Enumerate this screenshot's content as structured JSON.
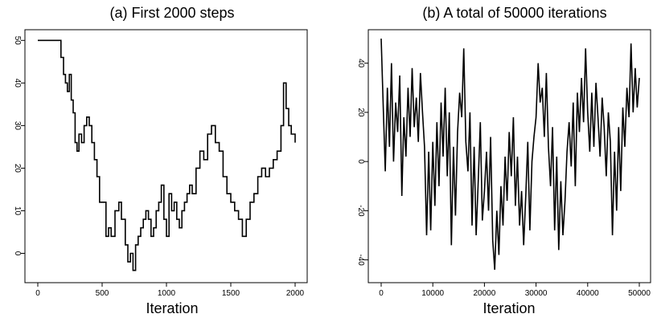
{
  "chart_data": [
    {
      "type": "line",
      "title": "(a) First 2000 steps",
      "xlabel": "Iteration",
      "ylabel": "",
      "xlim": [
        0,
        2000
      ],
      "ylim": [
        -5,
        51
      ],
      "xticks": [
        0,
        500,
        1000,
        1500,
        2000
      ],
      "yticks": [
        0,
        10,
        20,
        30,
        40,
        50
      ],
      "step": true,
      "series": [
        {
          "x": [
            0,
            180,
            200,
            215,
            230,
            245,
            260,
            275,
            290,
            305,
            320,
            340,
            360,
            380,
            400,
            420,
            440,
            460,
            480,
            500,
            530,
            550,
            570,
            600,
            630,
            650,
            680,
            700,
            720,
            740,
            760,
            780,
            800,
            820,
            840,
            860,
            880,
            900,
            920,
            940,
            960,
            980,
            1000,
            1020,
            1040,
            1060,
            1080,
            1100,
            1120,
            1140,
            1160,
            1180,
            1200,
            1230,
            1260,
            1290,
            1320,
            1350,
            1380,
            1410,
            1440,
            1470,
            1500,
            1530,
            1560,
            1590,
            1620,
            1650,
            1680,
            1710,
            1740,
            1770,
            1800,
            1830,
            1860,
            1890,
            1910,
            1930,
            1950,
            1970,
            2000
          ],
          "y": [
            50,
            46,
            42,
            40,
            38,
            42,
            36,
            33,
            26,
            24,
            28,
            26,
            30,
            32,
            30,
            26,
            22,
            18,
            12,
            12,
            4,
            6,
            4,
            10,
            12,
            8,
            2,
            -2,
            0,
            -4,
            2,
            4,
            6,
            8,
            10,
            8,
            4,
            6,
            10,
            12,
            16,
            8,
            4,
            14,
            10,
            12,
            8,
            6,
            10,
            12,
            14,
            16,
            14,
            20,
            24,
            22,
            28,
            30,
            26,
            24,
            18,
            14,
            12,
            10,
            8,
            4,
            8,
            12,
            14,
            18,
            20,
            18,
            20,
            22,
            24,
            30,
            40,
            34,
            30,
            28,
            26
          ]
        }
      ]
    },
    {
      "type": "line",
      "title": "(b) A total of 50000 iterations",
      "xlabel": "Iteration",
      "ylabel": "",
      "xlim": [
        0,
        50000
      ],
      "ylim": [
        -46,
        51
      ],
      "xticks": [
        0,
        10000,
        20000,
        30000,
        40000,
        50000
      ],
      "yticks": [
        -40,
        -20,
        0,
        20,
        40
      ],
      "series": [
        {
          "x": [
            0,
            400,
            800,
            1200,
            1600,
            2000,
            2400,
            2800,
            3200,
            3600,
            4000,
            4400,
            4800,
            5200,
            5600,
            6000,
            6400,
            6800,
            7200,
            7600,
            8000,
            8400,
            8800,
            9200,
            9600,
            10000,
            10400,
            10800,
            11200,
            11600,
            12000,
            12400,
            12800,
            13200,
            13600,
            14000,
            14400,
            14800,
            15200,
            15600,
            16000,
            16400,
            16800,
            17200,
            17600,
            18000,
            18400,
            18800,
            19200,
            19600,
            20000,
            20400,
            20800,
            21200,
            21600,
            22000,
            22400,
            22800,
            23200,
            23600,
            24000,
            24400,
            24800,
            25200,
            25600,
            26000,
            26400,
            26800,
            27200,
            27600,
            28000,
            28400,
            28800,
            29200,
            29600,
            30000,
            30400,
            30800,
            31200,
            31600,
            32000,
            32400,
            32800,
            33200,
            33600,
            34000,
            34400,
            34800,
            35200,
            35600,
            36000,
            36400,
            36800,
            37200,
            37600,
            38000,
            38400,
            38800,
            39200,
            39600,
            40000,
            40400,
            40800,
            41200,
            41600,
            42000,
            42400,
            42800,
            43200,
            43600,
            44000,
            44400,
            44800,
            45200,
            45600,
            46000,
            46400,
            46800,
            47200,
            47600,
            48000,
            48400,
            48800,
            49200,
            49600,
            50000
          ],
          "y": [
            50,
            22,
            -4,
            30,
            6,
            40,
            0,
            24,
            12,
            35,
            -14,
            18,
            2,
            30,
            10,
            38,
            14,
            26,
            8,
            36,
            20,
            6,
            -30,
            4,
            -28,
            8,
            -18,
            16,
            -10,
            24,
            2,
            30,
            -6,
            20,
            -34,
            6,
            -22,
            12,
            28,
            18,
            46,
            8,
            -4,
            20,
            -26,
            6,
            -30,
            -8,
            16,
            -24,
            -12,
            4,
            -20,
            10,
            -32,
            -44,
            -20,
            -38,
            -10,
            -26,
            2,
            -16,
            12,
            -6,
            18,
            -18,
            2,
            -26,
            -12,
            -34,
            -14,
            8,
            -28,
            0,
            10,
            18,
            40,
            24,
            30,
            10,
            36,
            6,
            -10,
            14,
            -28,
            2,
            -36,
            -8,
            -30,
            -16,
            4,
            16,
            -2,
            24,
            -10,
            28,
            12,
            34,
            16,
            46,
            20,
            4,
            28,
            6,
            32,
            18,
            2,
            26,
            14,
            -6,
            20,
            8,
            -30,
            4,
            -20,
            14,
            -12,
            22,
            6,
            30,
            18,
            48,
            20,
            38,
            22,
            34
          ]
        }
      ]
    }
  ]
}
